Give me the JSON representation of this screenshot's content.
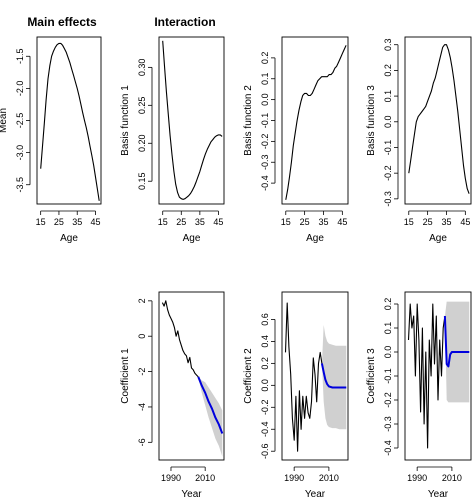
{
  "figure": {
    "column_titles": [
      "Main effects",
      "Interaction"
    ],
    "colors": {
      "observed": "#000000",
      "forecast": "#0000dd",
      "interval": "#d0d0d0"
    }
  },
  "chart_data": [
    {
      "type": "line",
      "id": "mean",
      "xlabel": "Age",
      "ylabel": "Mean",
      "xlim": [
        13,
        48
      ],
      "ylim": [
        -3.8,
        -1.2
      ],
      "xticks": [
        15,
        25,
        35,
        45
      ],
      "yticks": [
        -3.5,
        -3.0,
        -2.5,
        -2.0,
        -1.5
      ],
      "ytick_labels": [
        "-3.5",
        "-3.0",
        "-2.5",
        "-2.0",
        "-1.5"
      ],
      "series": [
        {
          "role": "observed",
          "x": [
            15,
            16,
            17,
            18,
            19,
            20,
            21,
            22,
            23,
            24,
            25,
            26,
            27,
            28,
            29,
            30,
            31,
            32,
            33,
            34,
            35,
            36,
            37,
            38,
            39,
            40,
            41,
            42,
            43,
            44,
            45,
            46,
            47
          ],
          "y": [
            -3.25,
            -2.9,
            -2.55,
            -2.18,
            -1.85,
            -1.65,
            -1.5,
            -1.42,
            -1.36,
            -1.32,
            -1.3,
            -1.3,
            -1.33,
            -1.38,
            -1.44,
            -1.52,
            -1.6,
            -1.7,
            -1.8,
            -1.9,
            -2.0,
            -2.12,
            -2.25,
            -2.38,
            -2.5,
            -2.62,
            -2.75,
            -2.9,
            -3.05,
            -3.2,
            -3.38,
            -3.56,
            -3.75
          ]
        }
      ]
    },
    {
      "type": "line",
      "id": "basis-1",
      "xlabel": "Age",
      "ylabel": "Basis function 1",
      "xlim": [
        13,
        48
      ],
      "ylim": [
        0.12,
        0.34
      ],
      "xticks": [
        15,
        25,
        35,
        45
      ],
      "yticks": [
        0.15,
        0.2,
        0.25,
        0.3
      ],
      "ytick_labels": [
        "0.15",
        "0.20",
        "0.25",
        "0.30"
      ],
      "series": [
        {
          "role": "observed",
          "x": [
            15,
            16,
            17,
            18,
            19,
            20,
            21,
            22,
            23,
            24,
            25,
            26,
            27,
            28,
            29,
            30,
            31,
            32,
            33,
            34,
            35,
            36,
            37,
            38,
            39,
            40,
            41,
            42,
            43,
            44,
            45,
            46,
            47
          ],
          "y": [
            0.335,
            0.3,
            0.268,
            0.238,
            0.21,
            0.185,
            0.163,
            0.146,
            0.135,
            0.129,
            0.127,
            0.126,
            0.127,
            0.129,
            0.131,
            0.134,
            0.138,
            0.143,
            0.149,
            0.156,
            0.163,
            0.171,
            0.179,
            0.186,
            0.192,
            0.197,
            0.202,
            0.205,
            0.208,
            0.21,
            0.211,
            0.211,
            0.209
          ]
        }
      ]
    },
    {
      "type": "line",
      "id": "basis-2",
      "xlabel": "Age",
      "ylabel": "Basis function 2",
      "xlim": [
        13,
        48
      ],
      "ylim": [
        -0.5,
        0.3
      ],
      "xticks": [
        15,
        25,
        35,
        45
      ],
      "yticks": [
        -0.4,
        -0.3,
        -0.2,
        -0.1,
        0.0,
        0.1,
        0.2
      ],
      "ytick_labels": [
        "-0.4",
        "-0.3",
        "-0.2",
        "-0.1",
        "0.0",
        "0.1",
        "0.2"
      ],
      "series": [
        {
          "role": "observed",
          "x": [
            15,
            16,
            17,
            18,
            19,
            20,
            21,
            22,
            23,
            24,
            25,
            26,
            27,
            28,
            29,
            30,
            31,
            32,
            33,
            34,
            35,
            36,
            37,
            38,
            39,
            40,
            41,
            42,
            43,
            44,
            45,
            46,
            47
          ],
          "y": [
            -0.48,
            -0.43,
            -0.37,
            -0.3,
            -0.22,
            -0.16,
            -0.1,
            -0.05,
            -0.01,
            0.02,
            0.03,
            0.03,
            0.02,
            0.02,
            0.03,
            0.05,
            0.07,
            0.09,
            0.1,
            0.11,
            0.11,
            0.11,
            0.11,
            0.12,
            0.12,
            0.13,
            0.15,
            0.16,
            0.18,
            0.2,
            0.22,
            0.24,
            0.26
          ]
        }
      ]
    },
    {
      "type": "line",
      "id": "basis-3",
      "xlabel": "Age",
      "ylabel": "Basis function 3",
      "xlim": [
        13,
        48
      ],
      "ylim": [
        -0.32,
        0.33
      ],
      "xticks": [
        15,
        25,
        35,
        45
      ],
      "yticks": [
        -0.3,
        -0.2,
        -0.1,
        0.0,
        0.1,
        0.2,
        0.3
      ],
      "ytick_labels": [
        "-0.3",
        "-0.2",
        "-0.1",
        "0.0",
        "0.1",
        "0.2",
        "0.3"
      ],
      "series": [
        {
          "role": "observed",
          "x": [
            15,
            16,
            17,
            18,
            19,
            20,
            21,
            22,
            23,
            24,
            25,
            26,
            27,
            28,
            29,
            30,
            31,
            32,
            33,
            34,
            35,
            36,
            37,
            38,
            39,
            40,
            41,
            42,
            43,
            44,
            45,
            46,
            47
          ],
          "y": [
            -0.2,
            -0.15,
            -0.1,
            -0.05,
            0.0,
            0.02,
            0.03,
            0.04,
            0.05,
            0.06,
            0.08,
            0.1,
            0.12,
            0.15,
            0.17,
            0.2,
            0.23,
            0.26,
            0.29,
            0.3,
            0.3,
            0.28,
            0.25,
            0.21,
            0.16,
            0.1,
            0.04,
            -0.03,
            -0.1,
            -0.17,
            -0.22,
            -0.26,
            -0.28
          ]
        }
      ]
    },
    {
      "type": "line",
      "id": "coefficient-1",
      "xlabel": "Year",
      "ylabel": "Coefficient 1",
      "xlim": [
        1983,
        2021
      ],
      "ylim": [
        -7,
        2.5
      ],
      "xticks": [
        1990,
        2010
      ],
      "yticks": [
        -6,
        -4,
        -2,
        0,
        2
      ],
      "ytick_labels": [
        "-6",
        "-4",
        "-2",
        "0",
        "2"
      ],
      "series": [
        {
          "role": "observed",
          "x": [
            1985,
            1986,
            1987,
            1988,
            1989,
            1990,
            1991,
            1992,
            1993,
            1994,
            1995,
            1996,
            1997,
            1998,
            1999,
            2000,
            2001,
            2002,
            2003,
            2004,
            2005,
            2006
          ],
          "y": [
            1.9,
            1.7,
            2.0,
            1.5,
            1.2,
            1.0,
            0.8,
            0.5,
            0.0,
            0.3,
            -0.2,
            -0.5,
            -0.8,
            -1.0,
            -1.1,
            -1.5,
            -1.2,
            -1.8,
            -1.9,
            -2.1,
            -2.2,
            -2.3
          ]
        },
        {
          "role": "forecast",
          "x": [
            2006,
            2008,
            2010,
            2012,
            2014,
            2016,
            2018,
            2020
          ],
          "y": [
            -2.3,
            -2.8,
            -3.2,
            -3.7,
            -4.1,
            -4.6,
            -5.0,
            -5.5
          ],
          "lower": [
            -2.3,
            -3.2,
            -3.9,
            -4.6,
            -5.2,
            -5.8,
            -6.2,
            -6.8
          ],
          "upper": [
            -2.3,
            -2.5,
            -2.6,
            -2.9,
            -3.2,
            -3.5,
            -3.8,
            -4.2
          ]
        }
      ]
    },
    {
      "type": "line",
      "id": "coefficient-2",
      "xlabel": "Year",
      "ylabel": "Coefficient 2",
      "xlim": [
        1983,
        2021
      ],
      "ylim": [
        -0.68,
        0.85
      ],
      "xticks": [
        1990,
        2010
      ],
      "yticks": [
        -0.6,
        -0.4,
        -0.2,
        0.0,
        0.2,
        0.4,
        0.6
      ],
      "ytick_labels": [
        "-0.6",
        "-0.4",
        "-0.2",
        "0.0",
        "0.2",
        "0.4",
        "0.6"
      ],
      "series": [
        {
          "role": "observed",
          "x": [
            1985,
            1986,
            1987,
            1988,
            1989,
            1990,
            1991,
            1992,
            1993,
            1994,
            1995,
            1996,
            1997,
            1998,
            1999,
            2000,
            2001,
            2002,
            2003,
            2004,
            2005,
            2006
          ],
          "y": [
            0.3,
            0.75,
            0.35,
            0.1,
            -0.3,
            -0.5,
            -0.1,
            -0.6,
            -0.05,
            -0.4,
            -0.1,
            -0.3,
            -0.1,
            -0.25,
            -0.3,
            -0.15,
            0.25,
            0.1,
            -0.15,
            0.2,
            0.3,
            0.2
          ]
        },
        {
          "role": "forecast",
          "x": [
            2006,
            2007,
            2008,
            2009,
            2010,
            2012,
            2014,
            2016,
            2018,
            2020
          ],
          "y": [
            0.2,
            0.12,
            0.05,
            0.01,
            -0.01,
            -0.02,
            -0.02,
            -0.02,
            -0.02,
            -0.02
          ],
          "lower": [
            0.2,
            -0.15,
            -0.3,
            -0.36,
            -0.38,
            -0.39,
            -0.39,
            -0.4,
            -0.4,
            -0.4
          ],
          "upper": [
            0.2,
            0.55,
            0.45,
            0.4,
            0.38,
            0.37,
            0.36,
            0.36,
            0.36,
            0.36
          ]
        }
      ]
    },
    {
      "type": "line",
      "id": "coefficient-3",
      "xlabel": "Year",
      "ylabel": "Coefficient 3",
      "xlim": [
        1983,
        2021
      ],
      "ylim": [
        -0.45,
        0.25
      ],
      "xticks": [
        1990,
        2010
      ],
      "yticks": [
        -0.4,
        -0.3,
        -0.2,
        -0.1,
        0.0,
        0.1,
        0.2
      ],
      "ytick_labels": [
        "-0.4",
        "-0.3",
        "-0.2",
        "-0.1",
        "0.0",
        "0.1",
        "0.2"
      ],
      "series": [
        {
          "role": "observed",
          "x": [
            1985,
            1986,
            1987,
            1988,
            1989,
            1990,
            1991,
            1992,
            1993,
            1994,
            1995,
            1996,
            1997,
            1998,
            1999,
            2000,
            2001,
            2002,
            2003,
            2004,
            2005,
            2006
          ],
          "y": [
            0.05,
            0.2,
            0.1,
            0.15,
            -0.1,
            0.2,
            0.05,
            -0.25,
            0.1,
            -0.3,
            0.0,
            -0.4,
            0.05,
            -0.1,
            0.2,
            -0.05,
            0.15,
            -0.2,
            0.05,
            -0.1,
            0.1,
            0.15
          ]
        },
        {
          "role": "forecast",
          "x": [
            2006,
            2007,
            2008,
            2009,
            2010,
            2012,
            2014,
            2016,
            2018,
            2020
          ],
          "y": [
            0.15,
            -0.05,
            -0.06,
            -0.01,
            0.0,
            0.0,
            0.0,
            0.0,
            0.0,
            0.0
          ],
          "lower": [
            0.15,
            -0.2,
            -0.21,
            -0.21,
            -0.21,
            -0.21,
            -0.21,
            -0.21,
            -0.21,
            -0.21
          ],
          "upper": [
            0.15,
            0.21,
            0.21,
            0.21,
            0.21,
            0.21,
            0.21,
            0.21,
            0.21,
            0.21
          ]
        }
      ]
    }
  ]
}
